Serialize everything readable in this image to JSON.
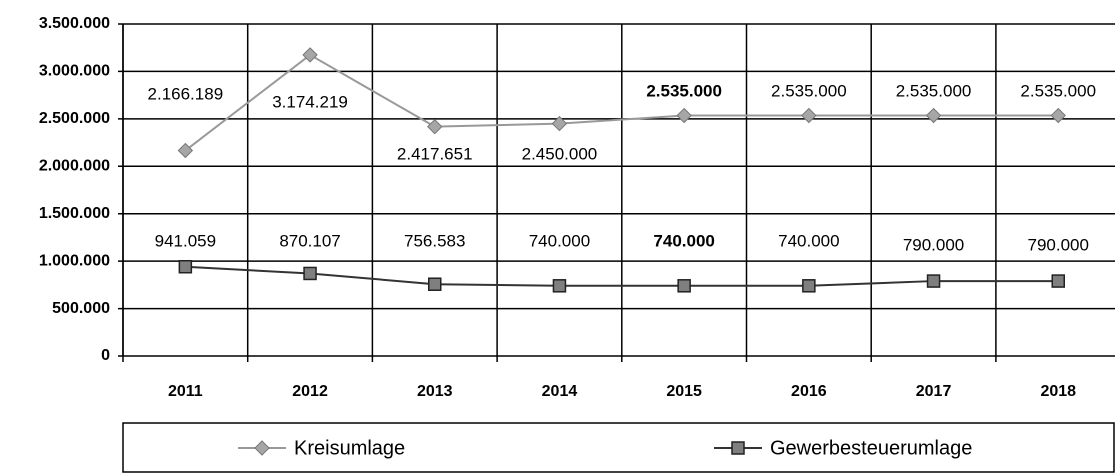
{
  "chart_data": {
    "type": "line",
    "categories": [
      "2011",
      "2012",
      "2013",
      "2014",
      "2015",
      "2016",
      "2017",
      "2018"
    ],
    "series": [
      {
        "name": "Kreisumlage",
        "color": "#999999",
        "values": [
          2166189,
          3174219,
          2417651,
          2450000,
          2535000,
          2535000,
          2535000,
          2535000
        ],
        "value_labels": [
          "2.166.189",
          "3.174.219",
          "2.417.651",
          "2.450.000",
          "2.535.000",
          "2.535.000",
          "2.535.000",
          "2.535.000"
        ]
      },
      {
        "name": "Gewerbesteuerumlage",
        "color": "#333333",
        "values": [
          941059,
          870107,
          756583,
          740000,
          740000,
          740000,
          790000,
          790000
        ],
        "value_labels": [
          "941.059",
          "870.107",
          "756.583",
          "740.000",
          "740.000",
          "740.000",
          "790.000",
          "790.000"
        ]
      }
    ],
    "ylim": [
      0,
      3500000
    ],
    "yticks": [
      0,
      {
        "value": 500000,
        "label": "500.000"
      },
      {
        "value": 1000000,
        "label": "1.000.000"
      },
      {
        "value": 1500000,
        "label": "1.500.000"
      },
      {
        "value": 2000000,
        "label": "2.000.000"
      },
      {
        "value": 2500000,
        "label": "2.500.000"
      },
      {
        "value": 3000000,
        "label": "3.000.000"
      },
      {
        "value": 3500000,
        "label": "3.500.000"
      }
    ],
    "grid": true
  }
}
